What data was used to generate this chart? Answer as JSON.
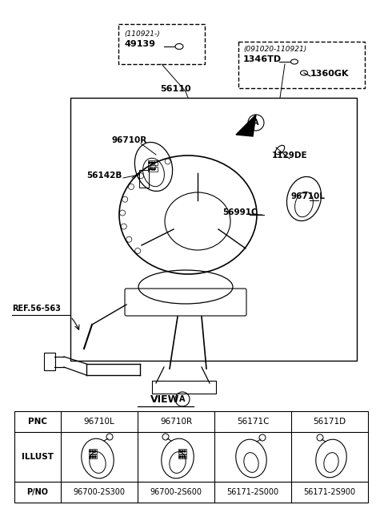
{
  "bg_color": "#ffffff",
  "view_label": "VIEW",
  "view_circle_label": "A",
  "table": {
    "headers": [
      "PNC",
      "96710L",
      "96710R",
      "56171C",
      "56171D"
    ],
    "row2_label": "ILLUST",
    "row3": [
      "P/NO",
      "96700-2S300",
      "96700-2S600",
      "56171-2S000",
      "56171-2S900"
    ]
  },
  "parts": {
    "box1_label": "(110921-)",
    "box1_part": "49139",
    "box2_label": "(091020-110921)",
    "box2_part1": "1346TD",
    "box2_part2": "1360GK",
    "label_56110": "56110",
    "label_96710R": "96710R",
    "label_56142B": "56142B",
    "label_1129DE": "1129DE",
    "label_96710L": "96710L",
    "label_56991C": "56991C",
    "label_ref": "REF.56-563",
    "circle_A": "A"
  }
}
